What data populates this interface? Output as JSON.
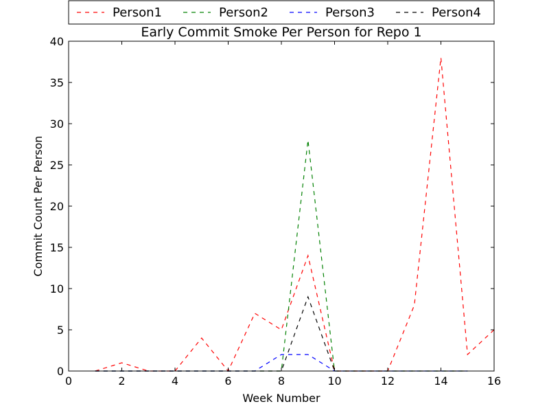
{
  "chart_data": {
    "type": "line",
    "title": "Early Commit Smoke Per Person for Repo 1",
    "xlabel": "Week Number",
    "ylabel": "Commit Count Per Person",
    "xlim": [
      0,
      16
    ],
    "ylim": [
      0,
      40
    ],
    "xticks": [
      0,
      2,
      4,
      6,
      8,
      10,
      12,
      14,
      16
    ],
    "yticks": [
      0,
      5,
      10,
      15,
      20,
      25,
      30,
      35,
      40
    ],
    "grid": false,
    "legend_position": "top",
    "line_style": "dashed",
    "x": [
      1,
      2,
      3,
      4,
      5,
      6,
      7,
      8,
      9,
      10,
      11,
      12,
      13,
      14,
      15,
      16
    ],
    "series": [
      {
        "name": "Person1",
        "color": "#ff0000",
        "values": [
          0,
          1,
          0,
          0,
          4,
          0,
          7,
          5,
          14,
          0,
          0,
          0,
          8,
          38,
          2,
          5
        ]
      },
      {
        "name": "Person2",
        "color": "#008000",
        "values": [
          0,
          0,
          0,
          0,
          0,
          0,
          0,
          0,
          28,
          0,
          0,
          0,
          0,
          0,
          0,
          null
        ]
      },
      {
        "name": "Person3",
        "color": "#0000ff",
        "values": [
          0,
          0,
          0,
          0,
          0,
          0,
          0,
          2,
          2,
          0,
          0,
          0,
          0,
          0,
          0,
          null
        ]
      },
      {
        "name": "Person4",
        "color": "#000000",
        "values": [
          0,
          0,
          0,
          0,
          0,
          0,
          0,
          0,
          9,
          0,
          0,
          0,
          0,
          0,
          0,
          null
        ]
      }
    ]
  }
}
